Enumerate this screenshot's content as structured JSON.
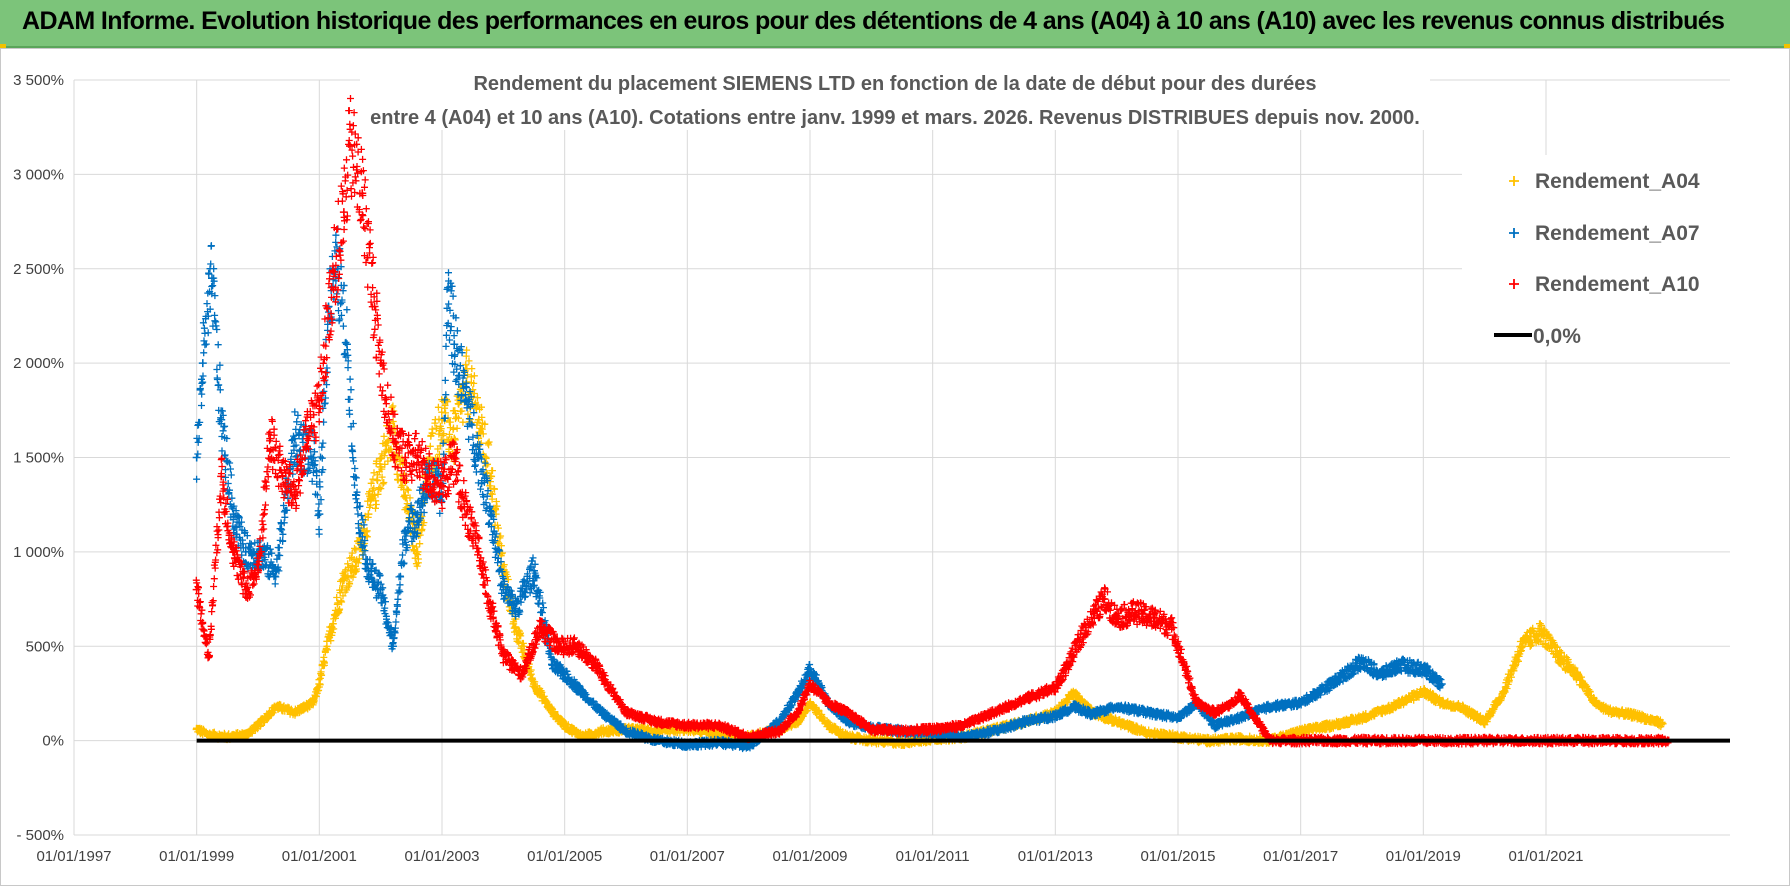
{
  "header": {
    "title": "ADAM Informe. Evolution historique des performances en euros pour des détentions de 4 ans (A04) à 10 ans (A10) avec les revenus connus distribués"
  },
  "colors": {
    "banner": "#7cc47a",
    "a04": "#ffc000",
    "a07": "#0070c0",
    "a10": "#ff0000",
    "zero": "#000000",
    "grid": "#d9d9d9"
  },
  "chart_data": {
    "type": "scatter",
    "title_line1": "Rendement du placement SIEMENS LTD en fonction de la date de début pour des durées",
    "title_line2": "entre 4 (A04) et 10 ans (A10).  Cotations entre janv. 1999 et mars. 2026. Revenus DISTRIBUES depuis nov. 2000.",
    "xlabel": "",
    "ylabel": "",
    "xlim": [
      1997.0,
      2024.0
    ],
    "ylim": [
      -500,
      3500
    ],
    "y_ticks": [
      -500,
      0,
      500,
      1000,
      1500,
      2000,
      2500,
      3000,
      3500
    ],
    "y_tick_labels": [
      "- 500%",
      "0%",
      "500%",
      "1 000%",
      "1 500%",
      "2 000%",
      "2 500%",
      "3 000%",
      "3 500%"
    ],
    "x_ticks": [
      1997,
      1999,
      2001,
      2003,
      2005,
      2007,
      2009,
      2011,
      2013,
      2015,
      2017,
      2019,
      2021
    ],
    "x_tick_labels": [
      "01/01/1997",
      "01/01/1999",
      "01/01/2001",
      "01/01/2003",
      "01/01/2005",
      "01/01/2007",
      "01/01/2009",
      "01/01/2011",
      "01/01/2013",
      "01/01/2015",
      "01/01/2017",
      "01/01/2019",
      "01/01/2021"
    ],
    "legend": [
      "Rendement_A04",
      "Rendement_A07",
      "Rendement_A10",
      "0,0%"
    ],
    "series": [
      {
        "name": "Rendement_A04",
        "x": [
          1999.0,
          1999.2,
          1999.5,
          1999.8,
          2000.0,
          2000.3,
          2000.6,
          2000.9,
          2001.0,
          2001.2,
          2001.4,
          2001.6,
          2001.8,
          2002.0,
          2002.2,
          2002.4,
          2002.6,
          2002.8,
          2003.0,
          2003.2,
          2003.4,
          2003.6,
          2003.8,
          2004.0,
          2004.2,
          2004.5,
          2004.8,
          2005.0,
          2005.3,
          2005.6,
          2006.0,
          2006.5,
          2007.0,
          2007.5,
          2008.0,
          2008.5,
          2008.8,
          2009.0,
          2009.3,
          2009.6,
          2010.0,
          2010.5,
          2011.0,
          2011.5,
          2012.0,
          2012.5,
          2013.0,
          2013.3,
          2013.6,
          2014.0,
          2014.5,
          2015.0,
          2015.5,
          2016.0,
          2016.5,
          2017.0,
          2017.5,
          2018.0,
          2018.5,
          2019.0,
          2019.3,
          2019.6,
          2020.0,
          2020.3,
          2020.6,
          2020.9,
          2021.2,
          2021.5,
          2021.8,
          2022.0,
          2022.5,
          2022.9
        ],
        "values": [
          60,
          30,
          20,
          30,
          80,
          180,
          150,
          200,
          300,
          600,
          850,
          950,
          1200,
          1450,
          1650,
          1300,
          1000,
          1500,
          1700,
          1600,
          1900,
          1700,
          1400,
          900,
          600,
          300,
          150,
          80,
          20,
          50,
          60,
          50,
          60,
          40,
          20,
          60,
          100,
          200,
          80,
          20,
          0,
          -10,
          10,
          20,
          60,
          100,
          150,
          250,
          150,
          100,
          40,
          20,
          0,
          10,
          0,
          50,
          80,
          120,
          180,
          260,
          200,
          180,
          100,
          250,
          500,
          580,
          450,
          350,
          200,
          160,
          130,
          90
        ]
      },
      {
        "name": "Rendement_A07",
        "x": [
          1999.0,
          1999.1,
          1999.25,
          1999.4,
          1999.6,
          1999.8,
          2000.0,
          2000.3,
          2000.6,
          2000.9,
          2001.0,
          2001.15,
          2001.3,
          2001.45,
          2001.6,
          2001.8,
          2002.0,
          2002.2,
          2002.4,
          2002.6,
          2002.8,
          2003.0,
          2003.1,
          2003.2,
          2003.4,
          2003.6,
          2003.8,
          2004.0,
          2004.2,
          2004.5,
          2004.8,
          2005.0,
          2005.3,
          2005.6,
          2006.0,
          2006.5,
          2007.0,
          2007.5,
          2008.0,
          2008.5,
          2008.8,
          2009.0,
          2009.3,
          2009.6,
          2010.0,
          2010.5,
          2011.0,
          2011.5,
          2012.0,
          2012.5,
          2013.0,
          2013.3,
          2013.6,
          2014.0,
          2014.5,
          2015.0,
          2015.3,
          2015.6,
          2016.0,
          2016.5,
          2017.0,
          2017.5,
          2018.0,
          2018.3,
          2018.6,
          2019.0,
          2019.3
        ],
        "values": [
          1500,
          2000,
          2450,
          1700,
          1200,
          1000,
          1000,
          900,
          1600,
          1500,
          1200,
          2300,
          2500,
          2100,
          1300,
          900,
          800,
          500,
          1100,
          1200,
          1400,
          1300,
          2400,
          2100,
          1800,
          1500,
          1200,
          800,
          700,
          900,
          400,
          350,
          250,
          150,
          50,
          0,
          -20,
          -10,
          -30,
          100,
          250,
          380,
          200,
          100,
          70,
          50,
          40,
          20,
          50,
          100,
          130,
          180,
          140,
          180,
          150,
          120,
          200,
          80,
          120,
          180,
          200,
          300,
          420,
          350,
          400,
          380,
          300
        ]
      },
      {
        "name": "Rendement_A10",
        "x": [
          1999.0,
          1999.2,
          1999.4,
          1999.6,
          1999.8,
          2000.0,
          2000.2,
          2000.4,
          2000.6,
          2000.8,
          2001.0,
          2001.2,
          2001.4,
          2001.5,
          2001.7,
          2001.9,
          2002.0,
          2002.2,
          2002.4,
          2002.6,
          2002.8,
          2003.0,
          2003.2,
          2003.4,
          2003.6,
          2003.8,
          2004.0,
          2004.3,
          2004.6,
          2004.9,
          2005.2,
          2005.5,
          2006.0,
          2006.5,
          2007.0,
          2007.5,
          2008.0,
          2008.5,
          2008.8,
          2009.0,
          2009.3,
          2009.6,
          2010.0,
          2010.5,
          2011.0,
          2011.5,
          2012.0,
          2012.5,
          2013.0,
          2013.2,
          2013.5,
          2013.8,
          2014.0,
          2014.3,
          2014.6,
          2014.9,
          2015.0,
          2015.3,
          2015.6,
          2015.9,
          2016.0,
          2016.5,
          2017.0,
          2018.0,
          2019.0,
          2020.0,
          2021.0,
          2022.0,
          2023.0
        ],
        "values": [
          800,
          450,
          1400,
          1000,
          800,
          900,
          1600,
          1400,
          1300,
          1600,
          1800,
          2400,
          2800,
          3150,
          2900,
          2300,
          2000,
          1600,
          1500,
          1500,
          1400,
          1350,
          1500,
          1200,
          1000,
          700,
          450,
          350,
          600,
          500,
          500,
          400,
          150,
          100,
          80,
          80,
          20,
          50,
          150,
          300,
          200,
          150,
          60,
          50,
          60,
          80,
          150,
          220,
          280,
          400,
          600,
          750,
          650,
          680,
          650,
          600,
          500,
          200,
          150,
          200,
          250,
          0,
          0,
          0,
          0,
          0,
          0,
          0,
          0
        ]
      },
      {
        "name": "0,0%",
        "x": [
          1999.0,
          2024.0
        ],
        "values": [
          0,
          0
        ]
      }
    ]
  }
}
